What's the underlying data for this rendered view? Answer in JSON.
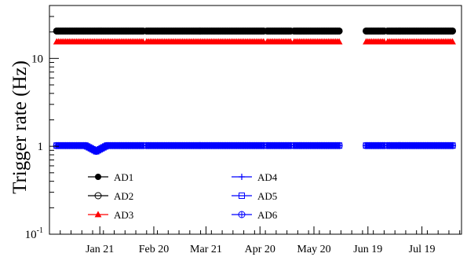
{
  "chart_data": {
    "type": "scatter",
    "ylabel": "Trigger rate (Hz)",
    "yscale": "log",
    "ylim": [
      0.1,
      40
    ],
    "yticks": [
      {
        "value": 0.1,
        "base": "10",
        "exp": "-1"
      },
      {
        "value": 1,
        "base": "1",
        "exp": ""
      },
      {
        "value": 10,
        "base": "10",
        "exp": ""
      }
    ],
    "xlim": [
      "2012-12-24",
      "2013-08-10"
    ],
    "xticks": [
      {
        "date": "2013-01-21",
        "label": "Jan 21"
      },
      {
        "date": "2013-02-20",
        "label": "Feb 20"
      },
      {
        "date": "2013-03-21",
        "label": "Mar 21"
      },
      {
        "date": "2013-04-20",
        "label": "Apr 20"
      },
      {
        "date": "2013-05-20",
        "label": "May 20"
      },
      {
        "date": "2013-06-19",
        "label": "Jun 19"
      },
      {
        "date": "2013-07-19",
        "label": "Jul 19"
      }
    ],
    "grid": false,
    "legend": {
      "position": "lower-left",
      "columns": 2
    },
    "data_ranges": [
      [
        "2012-12-28",
        "2013-02-14"
      ],
      [
        "2013-02-16",
        "2013-04-22"
      ],
      [
        "2013-04-24",
        "2013-05-07"
      ],
      [
        "2013-05-09",
        "2013-06-03"
      ],
      [
        "2013-06-18",
        "2013-06-28"
      ],
      [
        "2013-06-30",
        "2013-08-05"
      ]
    ],
    "dips": [
      {
        "from": "2013-01-13",
        "to": "2013-01-25",
        "series": [
          "AD4",
          "AD5",
          "AD6"
        ],
        "min_factor": 0.86
      }
    ],
    "series": [
      {
        "name": "AD1",
        "marker": "filled-circle",
        "color": "#000000",
        "value": 20.5
      },
      {
        "name": "AD2",
        "marker": "open-circle",
        "color": "#000000",
        "value": 20.5
      },
      {
        "name": "AD3",
        "marker": "filled-triangle",
        "color": "#ff0000",
        "value": 15.5
      },
      {
        "name": "AD4",
        "marker": "cross",
        "color": "#0000ff",
        "value": 1.02
      },
      {
        "name": "AD5",
        "marker": "open-square",
        "color": "#0000ff",
        "value": 1.02
      },
      {
        "name": "AD6",
        "marker": "crossed-circle",
        "color": "#0000ff",
        "value": 1.02
      }
    ]
  }
}
